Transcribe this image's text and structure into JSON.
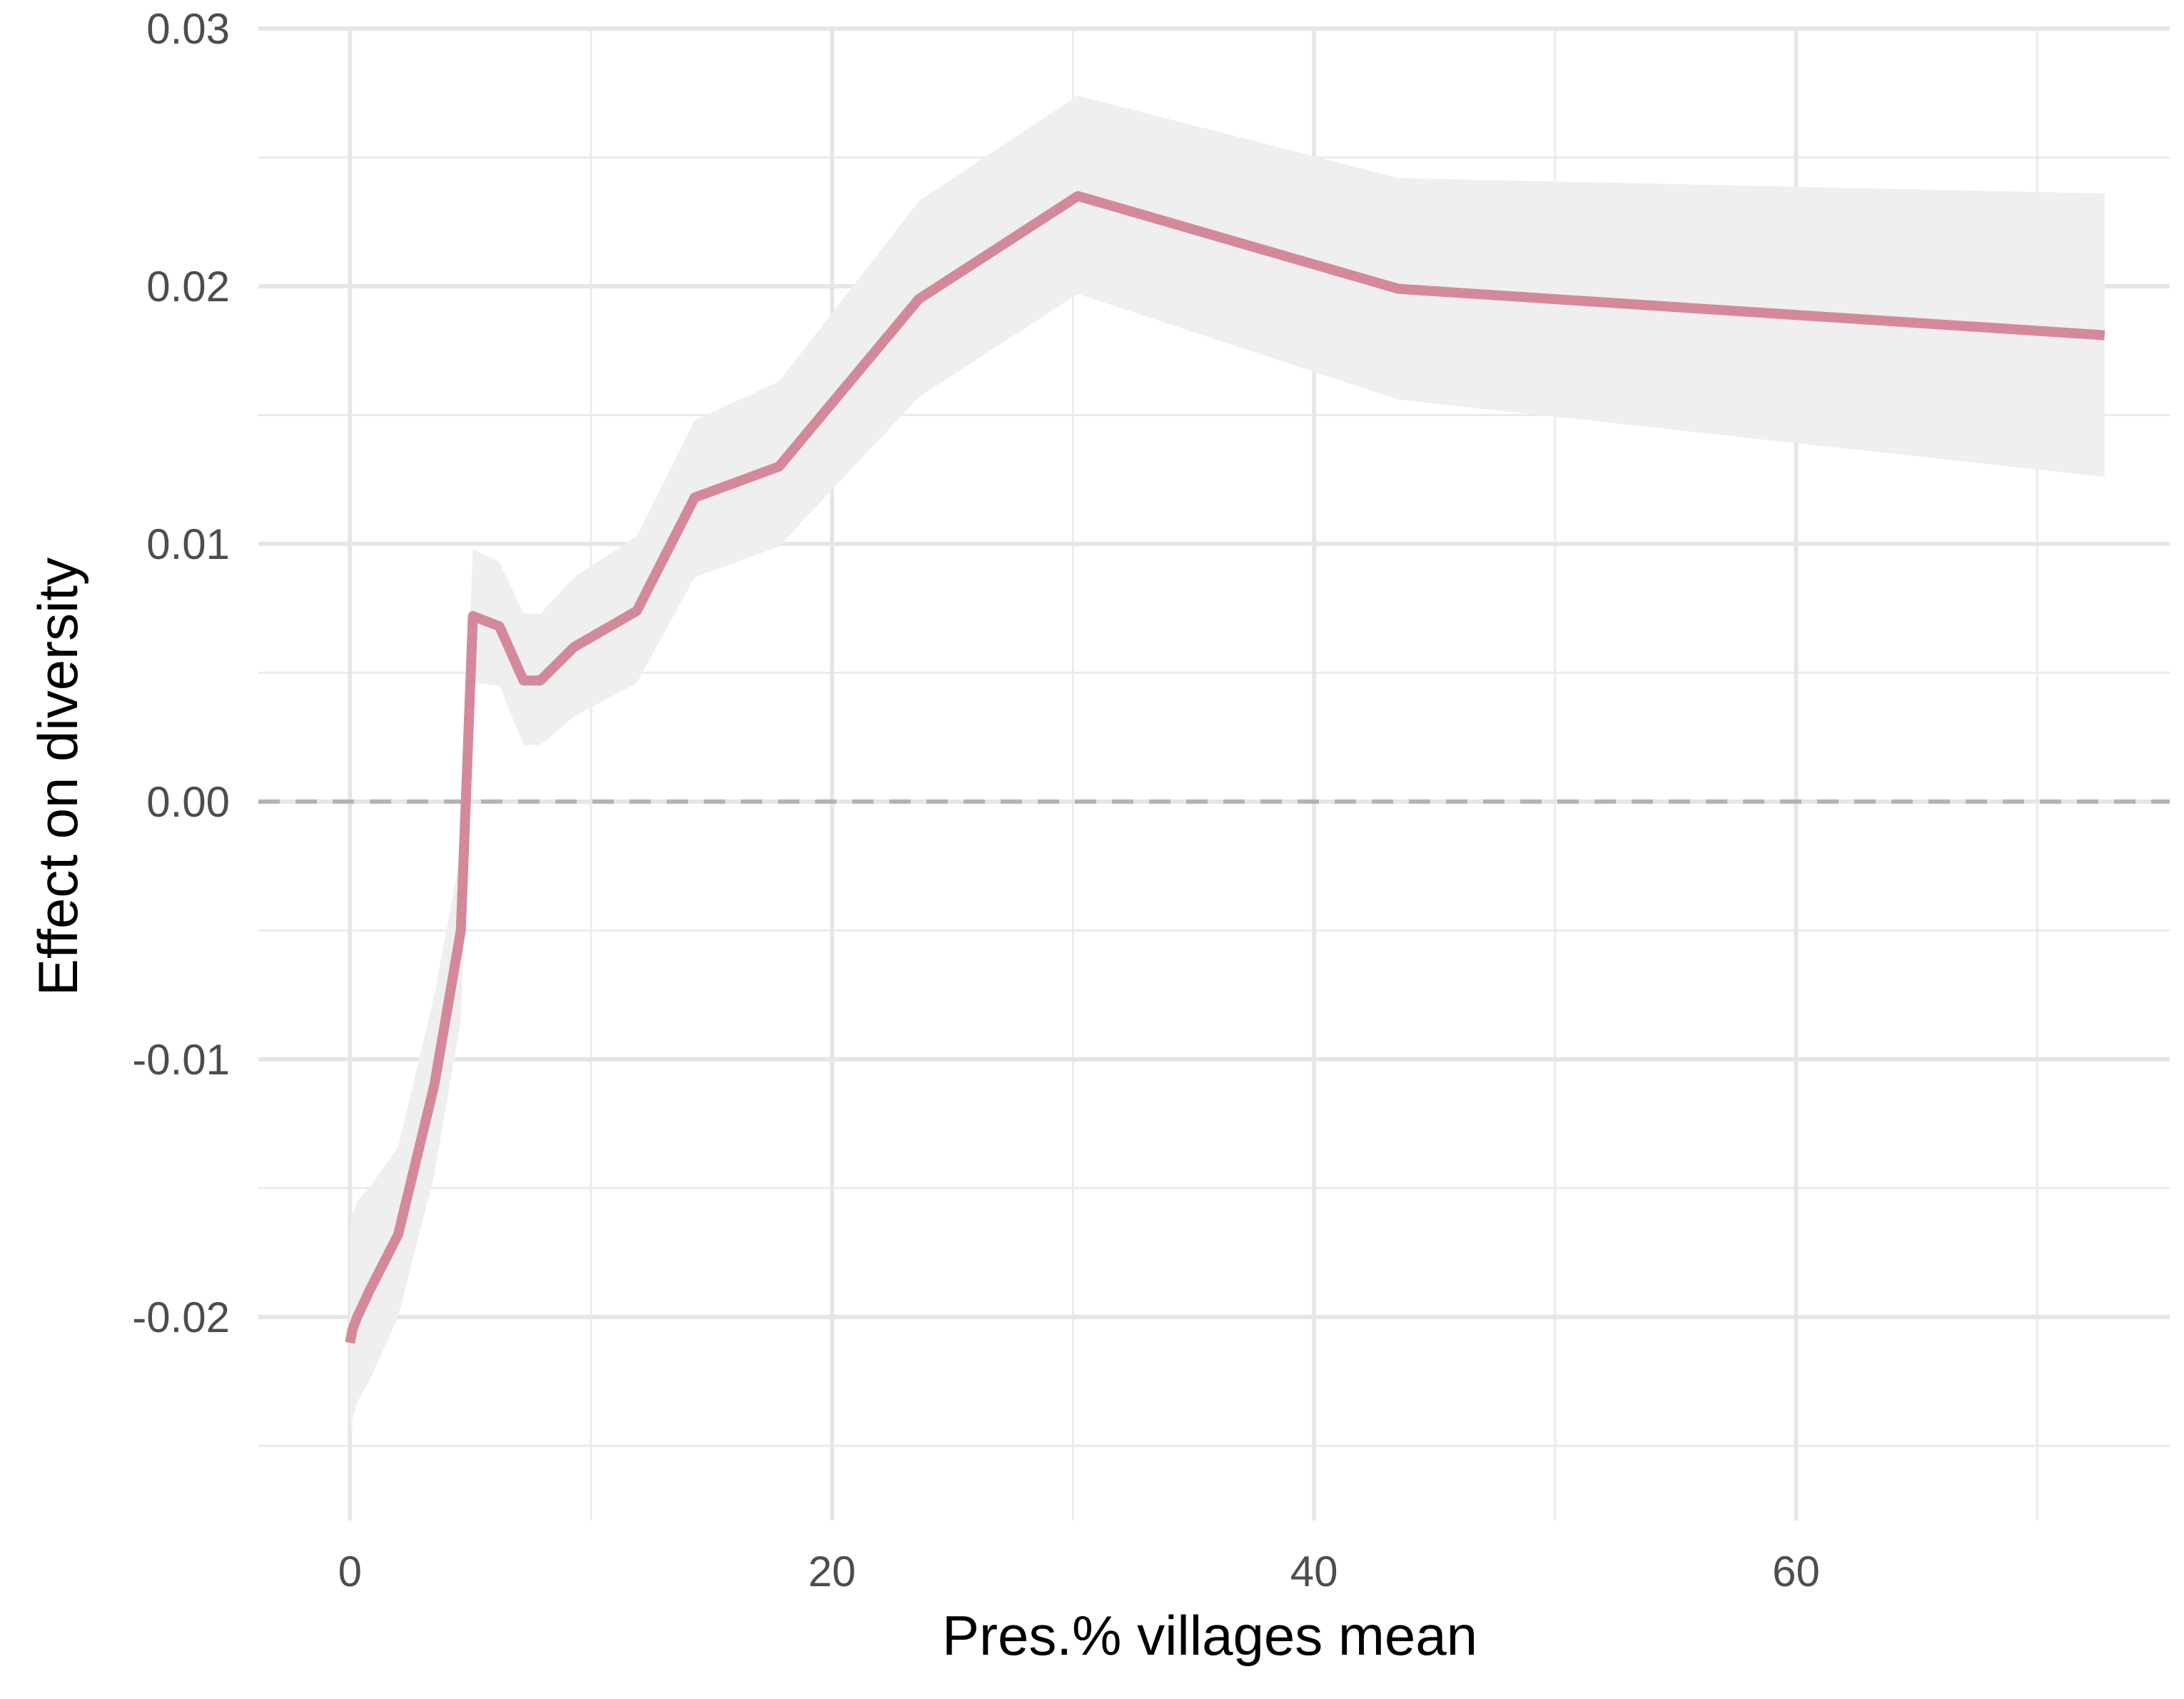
{
  "chart_data": {
    "type": "line",
    "title": "",
    "xlabel": "Pres.% villages mean",
    "ylabel": "Effect on diversity",
    "xlim": [
      -3.8,
      75.5
    ],
    "ylim": [
      -0.0279,
      0.03
    ],
    "x_ticks": [
      0,
      20,
      40,
      60
    ],
    "x_tick_labels": [
      "0",
      "20",
      "40",
      "60"
    ],
    "y_ticks": [
      -0.02,
      -0.01,
      0.0,
      0.01,
      0.02,
      0.03
    ],
    "y_tick_labels": [
      "-0.02",
      "-0.01",
      "0.00",
      "0.01",
      "0.02",
      "0.03"
    ],
    "grid": true,
    "reference_line": {
      "y": 0,
      "style": "dashed",
      "color": "#b3b3b3"
    },
    "line_color": "#d4899a",
    "band_color": "#efefef",
    "series": [
      {
        "x": [
          0.0,
          0.1,
          0.3,
          0.8,
          2.0,
          3.5,
          4.6,
          5.1,
          6.2,
          7.2,
          7.9,
          9.3,
          11.9,
          14.3,
          17.8,
          23.6,
          30.2,
          43.5,
          72.8
        ],
        "values": [
          -0.021,
          -0.0205,
          -0.02,
          -0.019,
          -0.0168,
          -0.011,
          -0.005,
          0.0072,
          0.0068,
          0.0047,
          0.0047,
          0.006,
          0.0074,
          0.0118,
          0.013,
          0.0195,
          0.0235,
          0.0199,
          0.0181
        ],
        "lower": [
          -0.0248,
          -0.024,
          -0.0233,
          -0.0225,
          -0.02,
          -0.0145,
          -0.0085,
          0.0046,
          0.0045,
          0.0022,
          0.0022,
          0.0033,
          0.0046,
          0.0087,
          0.0099,
          0.0157,
          0.0197,
          0.0156,
          0.0126
        ],
        "upper": [
          -0.0165,
          -0.016,
          -0.0155,
          -0.015,
          -0.0134,
          -0.0075,
          -0.002,
          0.0098,
          0.0093,
          0.0073,
          0.0073,
          0.0087,
          0.0103,
          0.0148,
          0.0163,
          0.0233,
          0.0274,
          0.0242,
          0.0236
        ]
      }
    ]
  }
}
